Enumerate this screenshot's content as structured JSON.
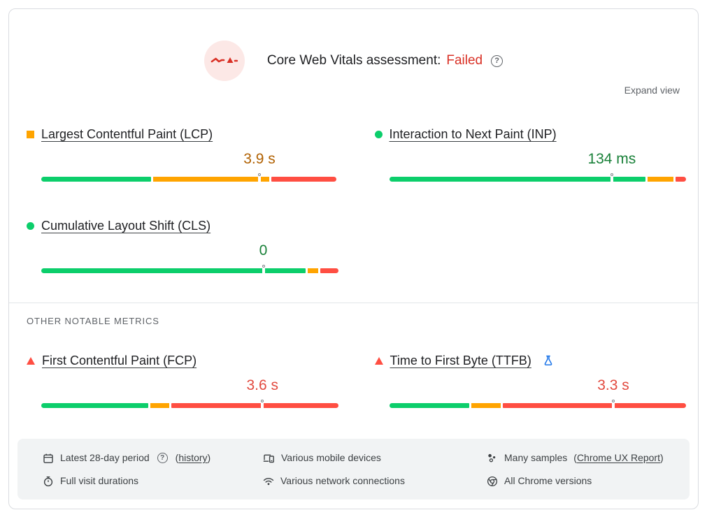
{
  "header": {
    "title": "Core Web Vitals assessment:",
    "status": "Failed",
    "status_color": "#D93025",
    "expand_view_label": "Expand view"
  },
  "icons": {
    "help_glyph": "?"
  },
  "colors": {
    "good": "#0CCE6B",
    "needs_improvement": "#FFA400",
    "poor": "#FF4E42",
    "good_text": "#188038",
    "needs_improvement_text": "#B06000",
    "poor_text": "#E24A3F"
  },
  "metrics": [
    {
      "id": "lcp",
      "label": "Largest Contentful Paint (LCP)",
      "value": "3.9 s",
      "value_color": "#B06000",
      "bullet": "square",
      "bullet_color": "#FFA400",
      "marker_pct": 73.5,
      "segments": [
        {
          "status": "good",
          "color": "#0CCE6B",
          "pct": 37
        },
        {
          "status": "needs-improvement",
          "color": "#FFA400",
          "pct": 39
        },
        {
          "status": "poor",
          "color": "#FF4E42",
          "pct": 22
        }
      ]
    },
    {
      "id": "inp",
      "label": "Interaction to Next Paint (INP)",
      "value": "134 ms",
      "value_color": "#188038",
      "bullet": "circle",
      "bullet_color": "#0CCE6B",
      "marker_pct": 75,
      "segments": [
        {
          "status": "good",
          "color": "#0CCE6B",
          "pct": 87.5
        },
        {
          "status": "needs-improvement",
          "color": "#FFA400",
          "pct": 9
        },
        {
          "status": "poor",
          "color": "#FF4E42",
          "pct": 3.5
        }
      ]
    },
    {
      "id": "cls",
      "label": "Cumulative Layout Shift (CLS)",
      "value": "0",
      "value_color": "#188038",
      "bullet": "circle",
      "bullet_color": "#0CCE6B",
      "marker_pct": 74.8,
      "segments": [
        {
          "status": "good",
          "color": "#0CCE6B",
          "pct": 89.5
        },
        {
          "status": "needs-improvement",
          "color": "#FFA400",
          "pct": 3.5
        },
        {
          "status": "poor",
          "color": "#FF4E42",
          "pct": 6
        }
      ]
    },
    {
      "id": "fcp",
      "label": "First Contentful Paint (FCP)",
      "value": "3.6 s",
      "value_color": "#E24A3F",
      "bullet": "triangle",
      "bullet_color": "#FF4E42",
      "marker_pct": 74.5,
      "segments": [
        {
          "status": "good",
          "color": "#0CCE6B",
          "pct": 36.5
        },
        {
          "status": "needs-improvement",
          "color": "#FFA400",
          "pct": 6.5
        },
        {
          "status": "poor",
          "color": "#FF4E42",
          "pct": 57
        }
      ]
    },
    {
      "id": "ttfb",
      "label": "Time to First Byte (TTFB)",
      "value": "3.3 s",
      "value_color": "#E24A3F",
      "bullet": "triangle",
      "bullet_color": "#FF4E42",
      "experimental": true,
      "marker_pct": 75.5,
      "segments": [
        {
          "status": "good",
          "color": "#0CCE6B",
          "pct": 27
        },
        {
          "status": "needs-improvement",
          "color": "#FFA400",
          "pct": 10
        },
        {
          "status": "poor",
          "color": "#FF4E42",
          "pct": 62
        }
      ]
    }
  ],
  "section_heading": "OTHER NOTABLE METRICS",
  "footer": {
    "columns": [
      {
        "items": [
          {
            "icon": "calendar-icon",
            "text": "Latest 28-day period",
            "has_help": true,
            "link_prefix": "(",
            "link_label": "history",
            "link_suffix": ")"
          },
          {
            "icon": "stopwatch-icon",
            "text": "Full visit durations"
          }
        ]
      },
      {
        "items": [
          {
            "icon": "devices-icon",
            "text": "Various mobile devices"
          },
          {
            "icon": "network-icon",
            "text": "Various network connections"
          }
        ]
      },
      {
        "items": [
          {
            "icon": "samples-icon",
            "text": "Many samples",
            "link_prefix": "(",
            "link_label": "Chrome UX Report",
            "link_suffix": ")"
          },
          {
            "icon": "chrome-icon",
            "text": "All Chrome versions"
          }
        ]
      }
    ]
  }
}
